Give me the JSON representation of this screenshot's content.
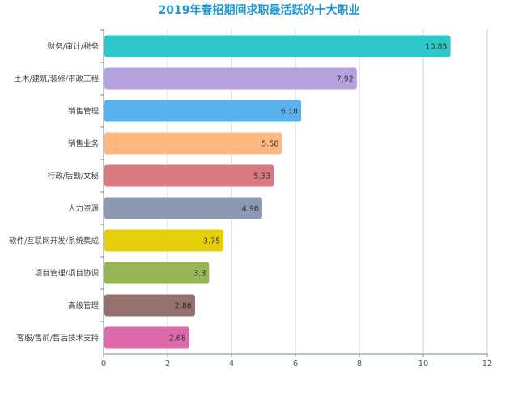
{
  "chart_data": {
    "type": "bar",
    "orientation": "horizontal",
    "title": "2019年春招期间求职最活跃的十大职业",
    "categories": [
      "财务/审计/税务",
      "土木/建筑/装修/市政工程",
      "销售管理",
      "销售业务",
      "行政/后勤/文秘",
      "人力资源",
      "软件/互联网开发/系统集成",
      "项目管理/项目协调",
      "高级管理",
      "客服/售前/售后技术支持"
    ],
    "values": [
      10.85,
      7.92,
      6.18,
      5.58,
      5.33,
      4.96,
      3.75,
      3.3,
      2.86,
      2.68
    ],
    "colors": [
      "#2ec7c9",
      "#b6a2de",
      "#5ab1ef",
      "#ffb980",
      "#d87a80",
      "#8d98b3",
      "#e5cf0d",
      "#97b552",
      "#95706d",
      "#dc69aa"
    ],
    "xlim": [
      0,
      12
    ],
    "xticks": [
      0,
      2,
      4,
      6,
      8,
      10,
      12
    ],
    "xlabel": "",
    "ylabel": "",
    "grid": true,
    "data_labels": true
  }
}
